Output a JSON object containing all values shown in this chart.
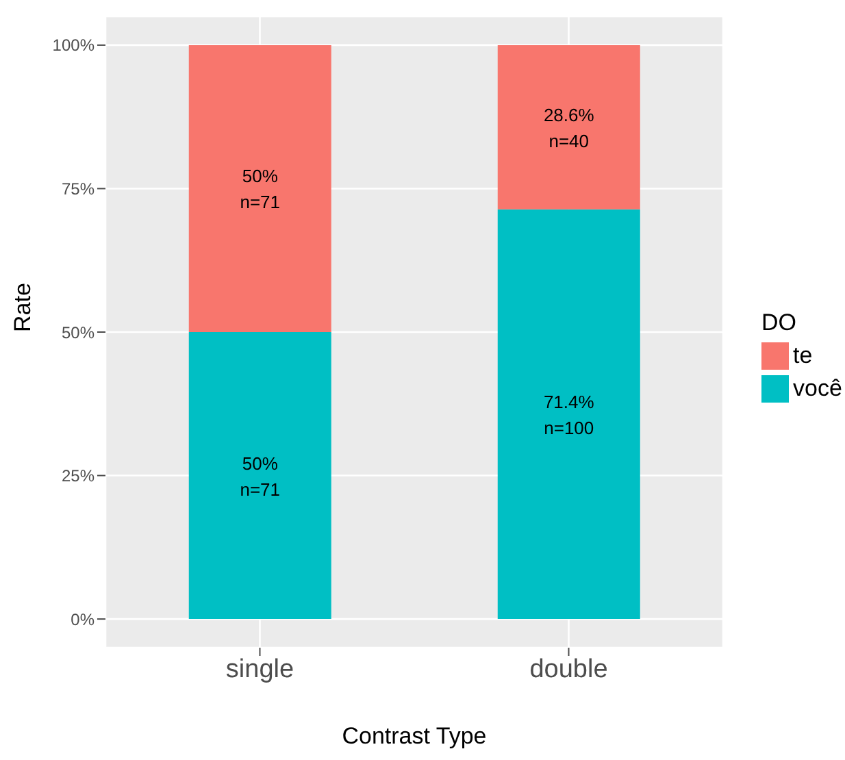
{
  "chart_data": {
    "type": "bar",
    "stacked": true,
    "xlabel": "Contrast Type",
    "ylabel": "Rate",
    "legend_title": "DO",
    "legend": "right",
    "grid": true,
    "categories": [
      "single",
      "double"
    ],
    "series": [
      {
        "name": "você",
        "color": "#00bfc4",
        "values": [
          50,
          71.4
        ],
        "value_labels": [
          "50%\nn=71",
          "71.4%\nn=100"
        ]
      },
      {
        "name": "te",
        "color": "#f8766d",
        "values": [
          50,
          28.6
        ],
        "value_labels": [
          "50%\nn=71",
          "28.6%\nn=40"
        ]
      }
    ],
    "ylim": [
      -5,
      105
    ],
    "yticks": [
      {
        "value": 0,
        "label": "0%"
      },
      {
        "value": 25,
        "label": "25%"
      },
      {
        "value": 50,
        "label": "50%"
      },
      {
        "value": 75,
        "label": "75%"
      },
      {
        "value": 100,
        "label": "100%"
      }
    ]
  }
}
